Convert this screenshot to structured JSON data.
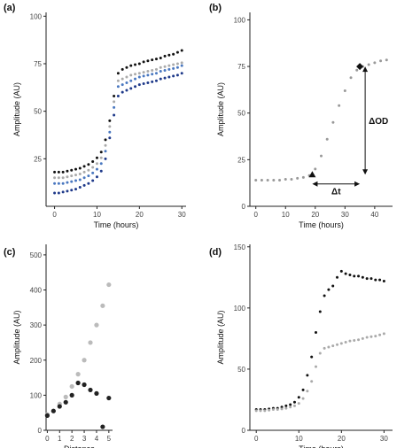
{
  "chart_data": [
    {
      "panel": "(a)",
      "type": "scatter",
      "xlabel": "Time (hours)",
      "ylabel": "Amplitude (AU)",
      "xlim": [
        -2,
        31
      ],
      "ylim": [
        0,
        102
      ],
      "xticks": [
        0,
        10,
        20,
        30
      ],
      "yticks": [
        25,
        50,
        75,
        100
      ],
      "grid": false,
      "series": [
        {
          "color": "#111111",
          "x": [
            0,
            1,
            2,
            3,
            4,
            5,
            6,
            7,
            8,
            9,
            10,
            11,
            12,
            13,
            14,
            15,
            16,
            17,
            18,
            19,
            20,
            21,
            22,
            23,
            24,
            25,
            26,
            27,
            28,
            29,
            30
          ],
          "values": [
            18,
            18,
            18,
            18.5,
            19,
            19.5,
            20,
            21,
            22,
            23.5,
            25.5,
            28.5,
            35,
            45,
            58,
            70,
            72,
            73,
            74,
            74.5,
            75,
            76,
            76.5,
            77,
            77.5,
            78,
            79,
            79.5,
            80,
            81,
            82
          ]
        },
        {
          "color": "#aaaaaa",
          "x": [
            0,
            1,
            2,
            3,
            4,
            5,
            6,
            7,
            8,
            9,
            10,
            11,
            12,
            13,
            14,
            15,
            16,
            17,
            18,
            19,
            20,
            21,
            22,
            23,
            24,
            25,
            26,
            27,
            28,
            29,
            30
          ],
          "values": [
            15,
            15,
            15,
            15.5,
            16,
            16.5,
            17,
            18,
            19,
            20.5,
            22.5,
            25.5,
            32,
            42,
            55,
            66,
            67,
            68,
            69,
            69.5,
            70,
            70.5,
            71,
            71.5,
            72,
            73,
            73.5,
            74,
            74.5,
            75,
            75.5
          ]
        },
        {
          "color": "#4a78c0",
          "x": [
            0,
            1,
            2,
            3,
            4,
            5,
            6,
            7,
            8,
            9,
            10,
            11,
            12,
            13,
            14,
            15,
            16,
            17,
            18,
            19,
            20,
            21,
            22,
            23,
            24,
            25,
            26,
            27,
            28,
            29,
            30
          ],
          "values": [
            12,
            12,
            12,
            12.5,
            13,
            13.5,
            14,
            15,
            16,
            17.5,
            19.5,
            22.5,
            29,
            39,
            52,
            63,
            64,
            65,
            66,
            67,
            68,
            68.5,
            69,
            69.5,
            70,
            71,
            71.5,
            72,
            72.5,
            73,
            74
          ]
        },
        {
          "color": "#1f3a8a",
          "x": [
            0,
            1,
            2,
            3,
            4,
            5,
            6,
            7,
            8,
            9,
            10,
            11,
            12,
            13,
            14,
            15,
            16,
            17,
            18,
            19,
            20,
            21,
            22,
            23,
            24,
            25,
            26,
            27,
            28,
            29,
            30
          ],
          "values": [
            7,
            7,
            7.5,
            8,
            8.5,
            9,
            10,
            11,
            12,
            13.5,
            15.5,
            18.5,
            25,
            36,
            48,
            58,
            60,
            61,
            62,
            63,
            64,
            64.5,
            65,
            65.5,
            66,
            67,
            67.5,
            68,
            68.5,
            69,
            70
          ]
        }
      ]
    },
    {
      "panel": "(b)",
      "type": "scatter",
      "xlabel": "Time (hours)",
      "ylabel": "Amplitude (AU)",
      "xlim": [
        -2,
        46
      ],
      "ylim": [
        0,
        104
      ],
      "xticks": [
        0,
        10,
        20,
        30,
        40
      ],
      "yticks": [
        0,
        25,
        50,
        75,
        100
      ],
      "grid": false,
      "series": [
        {
          "color": "#999999",
          "x": [
            0,
            2,
            4,
            6,
            8,
            10,
            12,
            14,
            16,
            18,
            20,
            22,
            24,
            26,
            28,
            30,
            32,
            34,
            36,
            38,
            40,
            42,
            44
          ],
          "values": [
            14,
            14,
            14,
            14,
            14,
            14.5,
            14.5,
            15,
            15.5,
            16.5,
            20,
            27,
            36,
            45,
            54,
            62,
            69,
            73,
            75,
            76,
            77,
            78,
            78.5
          ]
        }
      ],
      "markers": [
        {
          "shape": "triangle",
          "x": 19,
          "y": 17
        },
        {
          "shape": "diamond",
          "x": 35,
          "y": 75
        }
      ],
      "annotations": {
        "delta_t": "Δt",
        "delta_od": "ΔOD"
      }
    },
    {
      "panel": "(c)",
      "type": "scatter",
      "xlabel": "Distance",
      "ylabel": "Amplitude (AU)",
      "xlim": [
        -0.1,
        5.3
      ],
      "ylim": [
        0,
        530
      ],
      "xticks": [
        0,
        1,
        2,
        3,
        4,
        5
      ],
      "yticks": [
        0,
        100,
        200,
        300,
        400,
        500
      ],
      "grid": false,
      "series": [
        {
          "color": "#bbbbbb",
          "x": [
            0,
            0.5,
            1,
            1.5,
            2,
            2.5,
            3,
            3.5,
            4,
            4.5,
            5
          ],
          "values": [
            45,
            55,
            75,
            95,
            125,
            160,
            200,
            250,
            300,
            355,
            415
          ]
        },
        {
          "color": "#222222",
          "x": [
            0,
            0.5,
            1,
            1.5,
            2,
            2.5,
            3,
            3.5,
            4,
            4.5,
            5
          ],
          "values": [
            42,
            55,
            68,
            80,
            100,
            135,
            130,
            115,
            105,
            10,
            92
          ]
        }
      ]
    },
    {
      "panel": "(d)",
      "type": "scatter",
      "xlabel": "Time (hours)",
      "ylabel": "Amplitude (AU)",
      "xlim": [
        -1.5,
        32
      ],
      "ylim": [
        0,
        152
      ],
      "xticks": [
        0,
        10,
        20,
        30
      ],
      "yticks": [
        0,
        50,
        100,
        150
      ],
      "grid": false,
      "series": [
        {
          "color": "#111111",
          "x": [
            0,
            1,
            2,
            3,
            4,
            5,
            6,
            7,
            8,
            9,
            10,
            11,
            12,
            13,
            14,
            15,
            16,
            17,
            18,
            19,
            20,
            21,
            22,
            23,
            24,
            25,
            26,
            27,
            28,
            29,
            30
          ],
          "values": [
            17,
            17,
            17,
            17.5,
            18,
            18,
            19,
            20,
            21,
            23,
            27,
            33,
            45,
            60,
            80,
            97,
            110,
            115,
            118,
            125,
            130,
            128,
            127,
            126,
            126,
            125,
            124,
            124,
            123,
            123,
            122
          ]
        },
        {
          "color": "#aaaaaa",
          "x": [
            0,
            1,
            2,
            3,
            4,
            5,
            6,
            7,
            8,
            9,
            10,
            11,
            12,
            13,
            14,
            15,
            16,
            17,
            18,
            19,
            20,
            21,
            22,
            23,
            24,
            25,
            26,
            27,
            28,
            29,
            30
          ],
          "values": [
            16,
            16,
            16,
            16.5,
            17,
            17,
            17.5,
            18,
            19,
            20,
            22,
            26,
            32,
            40,
            52,
            63,
            67,
            68,
            69,
            70,
            71,
            72,
            73,
            73.5,
            74,
            75,
            76,
            76.5,
            77,
            78,
            79
          ]
        }
      ]
    }
  ]
}
